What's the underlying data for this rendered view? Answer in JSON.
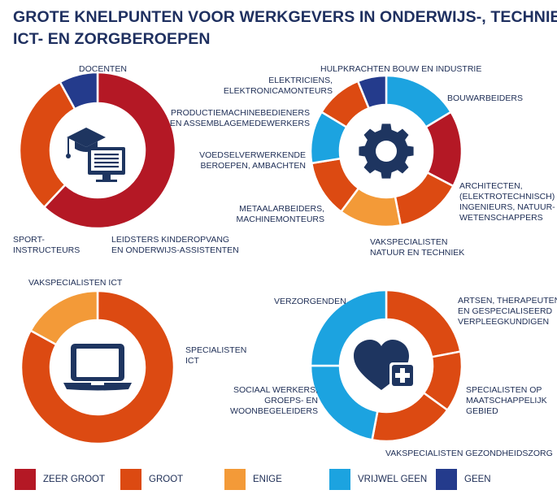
{
  "title_lines": [
    "GROTE KNELPUNTEN VOOR WERKGEVERS IN ONDERWIJS-, TECHNIEK-,",
    "ICT- EN ZORGBEROEPEN"
  ],
  "colors": {
    "zeer_groot": "#b41825",
    "groot": "#dc4a12",
    "enige": "#f39a38",
    "vrijwel_geen": "#1ca3e0",
    "geen": "#243b8c",
    "icon": "#1e3560"
  },
  "legend": [
    {
      "label": "ZEER GROOT",
      "color": "#b41825"
    },
    {
      "label": "GROOT",
      "color": "#dc4a12"
    },
    {
      "label": "ENIGE",
      "color": "#f39a38"
    },
    {
      "label": "VRIJWEL GEEN",
      "color": "#1ca3e0"
    },
    {
      "label": "GEEN",
      "color": "#243b8c"
    }
  ],
  "chart_data": [
    {
      "type": "pie",
      "icon": "graduation-monitor-icon",
      "slices": [
        {
          "label": [
            "DOCENTEN"
          ],
          "value": 62,
          "color": "#b41825"
        },
        {
          "label": [
            "LEIDSTERS KINDEROPVANG",
            "EN ONDERWIJS-ASSISTENTEN"
          ],
          "value": 30,
          "color": "#dc4a12"
        },
        {
          "label": [
            "SPORT-",
            "INSTRUCTEURS"
          ],
          "value": 8,
          "color": "#243b8c"
        }
      ]
    },
    {
      "type": "pie",
      "icon": "gear-icon",
      "slices": [
        {
          "label": [
            "BOUWARBEIDERS"
          ],
          "value": 16,
          "color": "#1ca3e0"
        },
        {
          "label": [
            "ARCHITECTEN,",
            "(ELEKTROTECHNISCH)",
            "INGENIEURS, NATUUR-",
            "WETENSCHAPPERS"
          ],
          "value": 16,
          "color": "#b41825"
        },
        {
          "label": [
            "VAKSPECIALISTEN",
            "NATUUR EN TECHNIEK"
          ],
          "value": 14,
          "color": "#dc4a12"
        },
        {
          "label": [
            "METAALARBEIDERS,",
            "MACHINEMONTEURS"
          ],
          "value": 13,
          "color": "#f39a38"
        },
        {
          "label": [
            "VOEDSELVERWERKENDE",
            "BEROEPEN, AMBACHTEN"
          ],
          "value": 12,
          "color": "#dc4a12"
        },
        {
          "label": [
            "PRODUCTIEMACHINEBEDIENERS",
            "EN ASSEMBLAGEMEDEWERKERS"
          ],
          "value": 11,
          "color": "#1ca3e0"
        },
        {
          "label": [
            "ELEKTRICIENS,",
            "ELEKTRONICAMONTEURS"
          ],
          "value": 10,
          "color": "#dc4a12"
        },
        {
          "label": [
            "HULPKRACHTEN BOUW EN INDUSTRIE"
          ],
          "value": 6,
          "color": "#243b8c"
        }
      ]
    },
    {
      "type": "pie",
      "icon": "laptop-icon",
      "slices": [
        {
          "label": [
            "SPECIALISTEN",
            "ICT"
          ],
          "value": 83,
          "color": "#dc4a12"
        },
        {
          "label": [
            "VAKSPECIALISTEN ICT"
          ],
          "value": 17,
          "color": "#f39a38"
        }
      ]
    },
    {
      "type": "pie",
      "icon": "heart-plus-icon",
      "slices": [
        {
          "label": [
            "ARTSEN, THERAPEUTEN",
            "EN GESPECIALISEERD",
            "VERPLEEGKUNDIGEN"
          ],
          "value": 22,
          "color": "#dc4a12"
        },
        {
          "label": [
            "SPECIALISTEN OP",
            "MAATSCHAPPELIJK",
            "GEBIED"
          ],
          "value": 13,
          "color": "#dc4a12"
        },
        {
          "label": [
            "VAKSPECIALISTEN GEZONDHEIDSZORG"
          ],
          "value": 18,
          "color": "#dc4a12"
        },
        {
          "label": [
            "SOCIAAL WERKERS,",
            "GROEPS- EN",
            "WOONBEGELEIDERS"
          ],
          "value": 22,
          "color": "#1ca3e0"
        },
        {
          "label": [
            "VERZORGENDEN"
          ],
          "value": 25,
          "color": "#1ca3e0"
        }
      ]
    }
  ]
}
